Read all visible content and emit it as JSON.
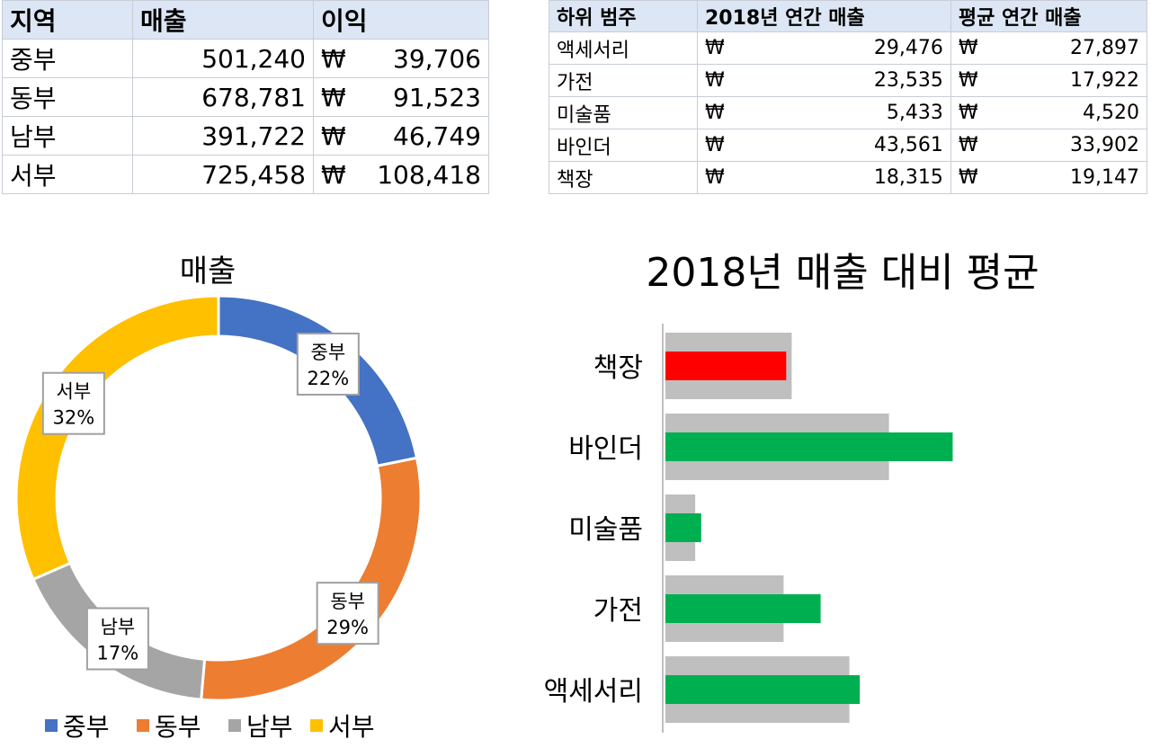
{
  "region_table": {
    "headers": [
      "지역",
      "매출",
      "이익"
    ],
    "currency": "₩",
    "rows": [
      {
        "region": "중부",
        "sales": "501,240",
        "profit": "39,706"
      },
      {
        "region": "동부",
        "sales": "678,781",
        "profit": "91,523"
      },
      {
        "region": "남부",
        "sales": "391,722",
        "profit": "46,749"
      },
      {
        "region": "서부",
        "sales": "725,458",
        "profit": "108,418"
      }
    ]
  },
  "sub_table": {
    "headers": [
      "하위 범주",
      "2018년 연간 매출",
      "평균 연간 매출"
    ],
    "currency": "₩",
    "rows": [
      {
        "category": "액세서리",
        "sales_2018": "29,476",
        "avg_sales": "27,897"
      },
      {
        "category": "가전",
        "sales_2018": "23,535",
        "avg_sales": "17,922"
      },
      {
        "category": "미술품",
        "sales_2018": "5,433",
        "avg_sales": "4,520"
      },
      {
        "category": "바인더",
        "sales_2018": "43,561",
        "avg_sales": "33,902"
      },
      {
        "category": "책장",
        "sales_2018": "18,315",
        "avg_sales": "19,147"
      }
    ]
  },
  "chart_data": [
    {
      "type": "pie",
      "title": "매출",
      "labels": [
        "중부",
        "동부",
        "남부",
        "서부"
      ],
      "values": [
        501240,
        678781,
        391722,
        725458
      ],
      "percent_labels": [
        "22%",
        "29%",
        "17%",
        "32%"
      ],
      "colors": [
        "#4472c4",
        "#ed7d31",
        "#a5a5a5",
        "#ffc000"
      ],
      "legend": "bottom"
    },
    {
      "type": "bar",
      "title": "2018년 매출 대비 평균",
      "orientation": "horizontal",
      "categories": [
        "책장",
        "바인더",
        "미술품",
        "가전",
        "액세서리"
      ],
      "series": [
        {
          "values": [
            19147,
            33902,
            4520,
            17922,
            27897
          ],
          "color": "#bfbfbf"
        },
        {
          "values": [
            18315,
            43561,
            5433,
            23535,
            29476
          ],
          "colors": [
            "#ff0000",
            "#00b050",
            "#00b050",
            "#00b050",
            "#00b050"
          ]
        }
      ],
      "xlim": [
        0,
        45000
      ]
    }
  ]
}
